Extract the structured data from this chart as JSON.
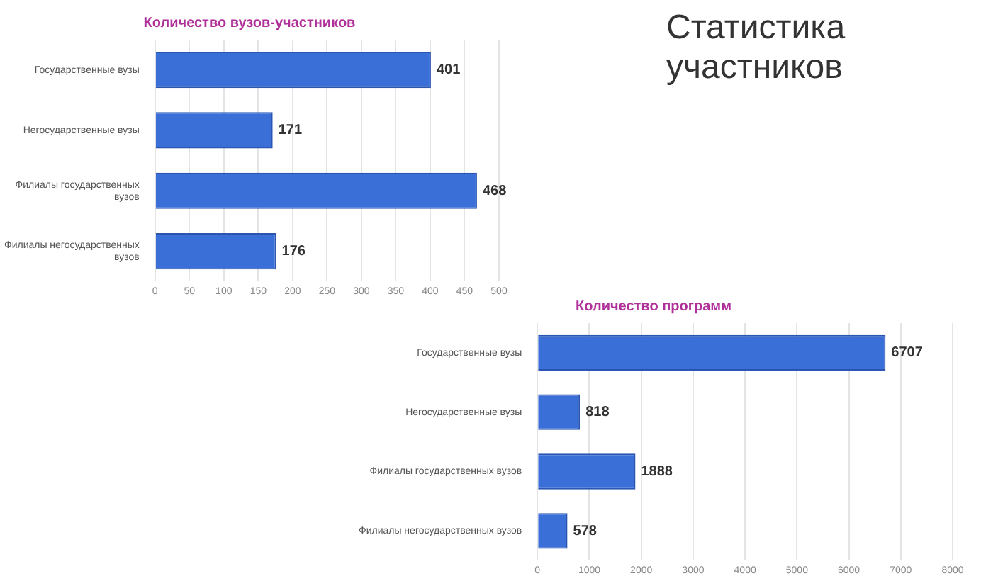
{
  "chart_data": [
    {
      "type": "bar",
      "orientation": "horizontal",
      "title": "Количество вузов-участников",
      "categories": [
        "Государственные вузы",
        "Негосударственные вузы",
        "Филиалы государственных вузов",
        "Филиалы негосударственных вузов"
      ],
      "values": [
        401,
        171,
        468,
        176
      ],
      "color": "#3a6fd8",
      "xlim": [
        0,
        500
      ],
      "xticks": [
        0,
        50,
        100,
        150,
        200,
        250,
        300,
        350,
        400,
        450,
        500
      ],
      "grid": "x",
      "data_labels": true
    },
    {
      "type": "bar",
      "orientation": "horizontal",
      "title": "Количество программ",
      "categories": [
        "Государственные вузы",
        "Негосударственные вузы",
        "Филиалы государственных вузов",
        "Филиалы негосударственных вузов"
      ],
      "values": [
        6707,
        818,
        1888,
        578
      ],
      "color": "#3a6fd8",
      "xlim": [
        0,
        8000
      ],
      "xticks": [
        0,
        1000,
        2000,
        3000,
        4000,
        5000,
        6000,
        7000,
        8000
      ],
      "grid": "x",
      "data_labels": true
    },
    {
      "type": "other",
      "title": "Статистика участников"
    }
  ]
}
